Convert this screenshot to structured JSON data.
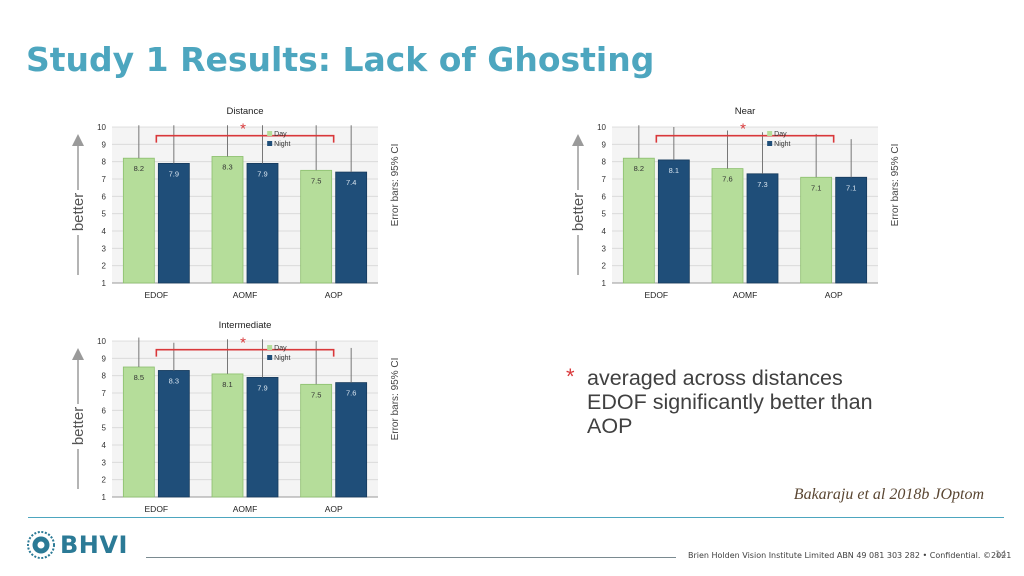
{
  "slide": {
    "title": "Study 1 Results: Lack of Ghosting",
    "note_star": "*",
    "note_lines": [
      "averaged across distances",
      "EDOF significantly better than",
      "AOP"
    ],
    "citation": "Bakaraju et al 2018b JOptom",
    "logo_text": "BHVI",
    "footer": "Brien Holden Vision Institute Limited ABN 49 081 303 282 • Confidential. ©2021",
    "page_number": "14"
  },
  "colors": {
    "title": "#4da6bf",
    "day": "#b5dd9a",
    "night": "#1f4e79",
    "significance": "#d9383a"
  },
  "chart_data": [
    {
      "type": "bar",
      "title": "Distance",
      "categories": [
        "EDOF",
        "AOMF",
        "AOP"
      ],
      "series": [
        {
          "name": "Day",
          "values": [
            8.2,
            8.3,
            7.5
          ],
          "ci_upper": [
            10.1,
            10.1,
            10.1
          ]
        },
        {
          "name": "Night",
          "values": [
            7.9,
            7.9,
            7.4
          ],
          "ci_upper": [
            10.1,
            10.1,
            10.1
          ]
        }
      ],
      "y_ticks": [
        1,
        2,
        3,
        4,
        5,
        6,
        7,
        8,
        9,
        10
      ],
      "ylim": [
        1,
        10
      ],
      "ylabel": "better",
      "right_label": "Error bars: 95% CI",
      "significance_marker": "*",
      "legend_position": "top-right",
      "grid": true
    },
    {
      "type": "bar",
      "title": "Near",
      "categories": [
        "EDOF",
        "AOMF",
        "AOP"
      ],
      "series": [
        {
          "name": "Day",
          "values": [
            8.2,
            7.6,
            7.1
          ],
          "ci_upper": [
            10.1,
            9.8,
            9.6
          ]
        },
        {
          "name": "Night",
          "values": [
            8.1,
            7.3,
            7.1
          ],
          "ci_upper": [
            10.0,
            9.7,
            9.3
          ]
        }
      ],
      "y_ticks": [
        1,
        2,
        3,
        4,
        5,
        6,
        7,
        8,
        9,
        10
      ],
      "ylim": [
        1,
        10
      ],
      "ylabel": "better",
      "right_label": "Error bars: 95% CI",
      "significance_marker": "*",
      "legend_position": "top-right",
      "grid": true
    },
    {
      "type": "bar",
      "title": "Intermediate",
      "categories": [
        "EDOF",
        "AOMF",
        "AOP"
      ],
      "series": [
        {
          "name": "Day",
          "values": [
            8.5,
            8.1,
            7.5
          ],
          "ci_upper": [
            10.2,
            10.1,
            10.0
          ]
        },
        {
          "name": "Night",
          "values": [
            8.3,
            7.9,
            7.6
          ],
          "ci_upper": [
            9.9,
            10.1,
            9.6
          ]
        }
      ],
      "y_ticks": [
        1,
        2,
        3,
        4,
        5,
        6,
        7,
        8,
        9,
        10
      ],
      "ylim": [
        1,
        10
      ],
      "ylabel": "better",
      "right_label": "Error bars: 95% CI",
      "significance_marker": "*",
      "legend_position": "top-right",
      "grid": true
    }
  ]
}
